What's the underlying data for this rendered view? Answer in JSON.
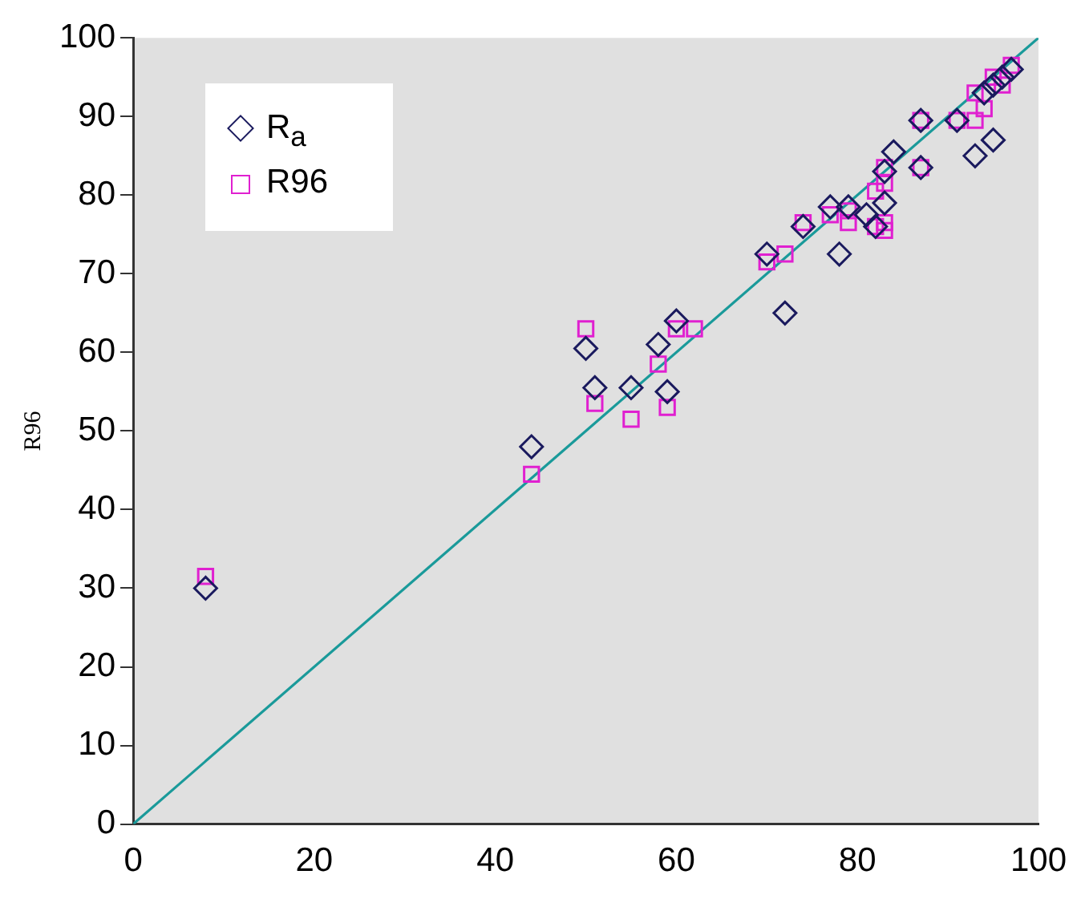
{
  "chart_data": {
    "type": "scatter",
    "ylabel": "R96",
    "xlim": [
      0,
      100
    ],
    "ylim": [
      0,
      100
    ],
    "xticks": [
      0,
      20,
      40,
      60,
      80,
      100
    ],
    "yticks": [
      0,
      10,
      20,
      30,
      40,
      50,
      60,
      70,
      80,
      90,
      100
    ],
    "grid": false,
    "legend": "top left",
    "series": [
      {
        "name": "R$_{a}$",
        "color": "#1a1a5e",
        "marker": "diamond",
        "x": [
          8,
          44,
          50,
          51,
          55,
          58,
          59,
          60,
          70,
          72,
          74,
          77,
          78,
          79,
          81,
          82,
          83,
          83,
          84,
          87,
          87,
          91,
          93,
          94,
          95,
          95,
          96,
          97
        ],
        "values": [
          30,
          48,
          60.5,
          55.5,
          55.5,
          61,
          55,
          64,
          72.5,
          65,
          76,
          78.5,
          72.5,
          78.5,
          77.5,
          76,
          79,
          83,
          85.5,
          89.5,
          83.5,
          89.5,
          85,
          93,
          87,
          94,
          95,
          96
        ]
      },
      {
        "name": "R96",
        "color": "#e020d0",
        "marker": "square",
        "x": [
          8,
          44,
          50,
          51,
          55,
          58,
          59,
          60,
          62,
          70,
          72,
          74,
          77,
          79,
          79,
          82,
          82,
          83,
          83,
          83,
          83,
          87,
          87,
          91,
          93,
          93,
          94,
          95,
          96,
          97
        ],
        "values": [
          31.5,
          44.5,
          63,
          53.5,
          51.5,
          58.5,
          53,
          63,
          63,
          71.5,
          72.5,
          76.5,
          77.5,
          78,
          76.5,
          80.5,
          76,
          75.5,
          76.5,
          81.5,
          83.5,
          89.5,
          83.5,
          89.5,
          89.5,
          93,
          91,
          95,
          94,
          96.5
        ]
      },
      {
        "type": "line",
        "color": "#1a9a9a",
        "marker": "none",
        "x": [
          0,
          100
        ],
        "values": [
          0,
          100
        ]
      }
    ]
  }
}
